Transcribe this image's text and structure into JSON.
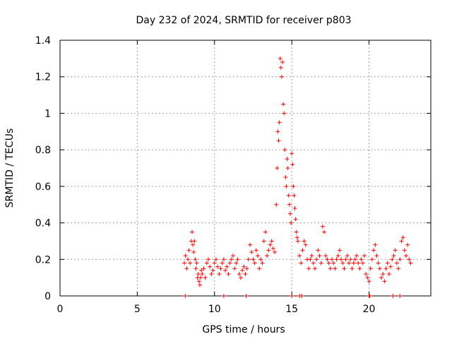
{
  "chart_data": {
    "type": "scatter",
    "title": "Day 232 of 2024, SRMTID for receiver p803",
    "xlabel": "GPS time / hours",
    "ylabel": "SRMTID / TECUs",
    "xlim": [
      0,
      24
    ],
    "ylim": [
      0,
      1.4
    ],
    "xticks": [
      0,
      5,
      10,
      15,
      20
    ],
    "yticks": [
      0,
      0.2,
      0.4,
      0.6,
      0.8,
      1,
      1.2,
      1.4
    ],
    "xtick_labels": [
      "0",
      "5",
      "10",
      "15",
      "20"
    ],
    "ytick_labels": [
      "0",
      "0.2",
      "0.4",
      "0.6",
      "0.8",
      "1",
      "1.2",
      "1.4"
    ],
    "grid": true,
    "marker": "+",
    "color": "#ff0000",
    "series": [
      {
        "name": "SRMTID",
        "x": [
          8.05,
          8.12,
          8.2,
          8.28,
          8.35,
          8.42,
          8.5,
          8.55,
          8.6,
          8.65,
          8.7,
          8.75,
          8.8,
          8.85,
          8.9,
          8.95,
          9.0,
          9.05,
          9.1,
          9.15,
          9.2,
          9.3,
          9.4,
          9.5,
          9.6,
          9.7,
          9.8,
          9.9,
          10.0,
          10.1,
          10.2,
          10.3,
          10.4,
          10.5,
          10.6,
          10.7,
          10.8,
          10.9,
          11.0,
          11.1,
          11.2,
          11.3,
          11.4,
          11.5,
          11.6,
          11.7,
          11.8,
          11.9,
          12.0,
          12.1,
          12.2,
          12.3,
          12.4,
          12.5,
          12.6,
          12.7,
          12.8,
          12.9,
          13.0,
          13.1,
          13.2,
          13.3,
          13.4,
          13.5,
          13.6,
          13.7,
          13.8,
          13.9,
          14.0,
          14.05,
          14.1,
          14.15,
          14.2,
          14.25,
          14.3,
          14.35,
          14.4,
          14.45,
          14.5,
          14.55,
          14.6,
          14.65,
          14.7,
          14.75,
          14.8,
          14.85,
          14.9,
          14.95,
          15.0,
          15.05,
          15.1,
          15.15,
          15.2,
          15.25,
          15.3,
          15.35,
          15.4,
          15.5,
          15.6,
          15.7,
          15.8,
          15.9,
          16.0,
          16.1,
          16.2,
          16.3,
          16.4,
          16.5,
          16.6,
          16.7,
          16.8,
          16.9,
          17.0,
          17.1,
          17.2,
          17.3,
          17.4,
          17.5,
          17.6,
          17.7,
          17.8,
          17.9,
          18.0,
          18.1,
          18.2,
          18.3,
          18.4,
          18.5,
          18.6,
          18.7,
          18.8,
          18.9,
          19.0,
          19.1,
          19.2,
          19.3,
          19.4,
          19.5,
          19.6,
          19.7,
          19.8,
          19.9,
          20.0,
          20.1,
          20.2,
          20.3,
          20.4,
          20.5,
          20.6,
          20.7,
          20.8,
          20.9,
          21.0,
          21.1,
          21.2,
          21.3,
          21.4,
          21.5,
          21.6,
          21.7,
          21.8,
          21.9,
          22.0,
          22.1,
          22.2,
          22.3,
          22.4,
          22.5,
          22.6,
          22.7,
          8.1,
          10.6,
          12.05,
          15.0,
          15.5,
          15.65,
          20.0,
          20.05,
          21.55,
          22.0
        ],
        "y": [
          0.18,
          0.22,
          0.15,
          0.2,
          0.25,
          0.18,
          0.3,
          0.35,
          0.28,
          0.24,
          0.3,
          0.2,
          0.15,
          0.18,
          0.1,
          0.12,
          0.08,
          0.06,
          0.1,
          0.14,
          0.12,
          0.15,
          0.1,
          0.18,
          0.2,
          0.16,
          0.12,
          0.14,
          0.18,
          0.2,
          0.16,
          0.12,
          0.15,
          0.18,
          0.2,
          0.14,
          0.16,
          0.12,
          0.18,
          0.2,
          0.22,
          0.15,
          0.18,
          0.2,
          0.12,
          0.1,
          0.14,
          0.16,
          0.12,
          0.15,
          0.2,
          0.28,
          0.24,
          0.2,
          0.18,
          0.25,
          0.22,
          0.15,
          0.2,
          0.18,
          0.3,
          0.35,
          0.22,
          0.25,
          0.28,
          0.3,
          0.26,
          0.24,
          0.5,
          0.7,
          0.9,
          0.85,
          0.95,
          1.3,
          1.25,
          1.2,
          1.28,
          1.05,
          1.0,
          0.8,
          0.65,
          0.6,
          0.75,
          0.7,
          0.55,
          0.5,
          0.45,
          0.4,
          0.78,
          0.72,
          0.6,
          0.55,
          0.48,
          0.42,
          0.35,
          0.32,
          0.3,
          0.22,
          0.18,
          0.25,
          0.3,
          0.28,
          0.2,
          0.15,
          0.2,
          0.22,
          0.18,
          0.15,
          0.2,
          0.25,
          0.22,
          0.18,
          0.38,
          0.35,
          0.22,
          0.2,
          0.18,
          0.15,
          0.2,
          0.18,
          0.15,
          0.2,
          0.22,
          0.25,
          0.2,
          0.18,
          0.15,
          0.2,
          0.22,
          0.18,
          0.2,
          0.15,
          0.18,
          0.2,
          0.22,
          0.18,
          0.15,
          0.2,
          0.18,
          0.22,
          0.12,
          0.1,
          0.08,
          0.15,
          0.2,
          0.25,
          0.28,
          0.22,
          0.18,
          0.15,
          0.1,
          0.12,
          0.08,
          0.15,
          0.18,
          0.12,
          0.16,
          0.2,
          0.22,
          0.25,
          0.18,
          0.15,
          0.2,
          0.3,
          0.32,
          0.25,
          0.22,
          0.28,
          0.2,
          0.18,
          0.0,
          0.0,
          0.0,
          0.0,
          0.0,
          0.0,
          0.0,
          0.0,
          0.0,
          0.0
        ]
      }
    ]
  }
}
